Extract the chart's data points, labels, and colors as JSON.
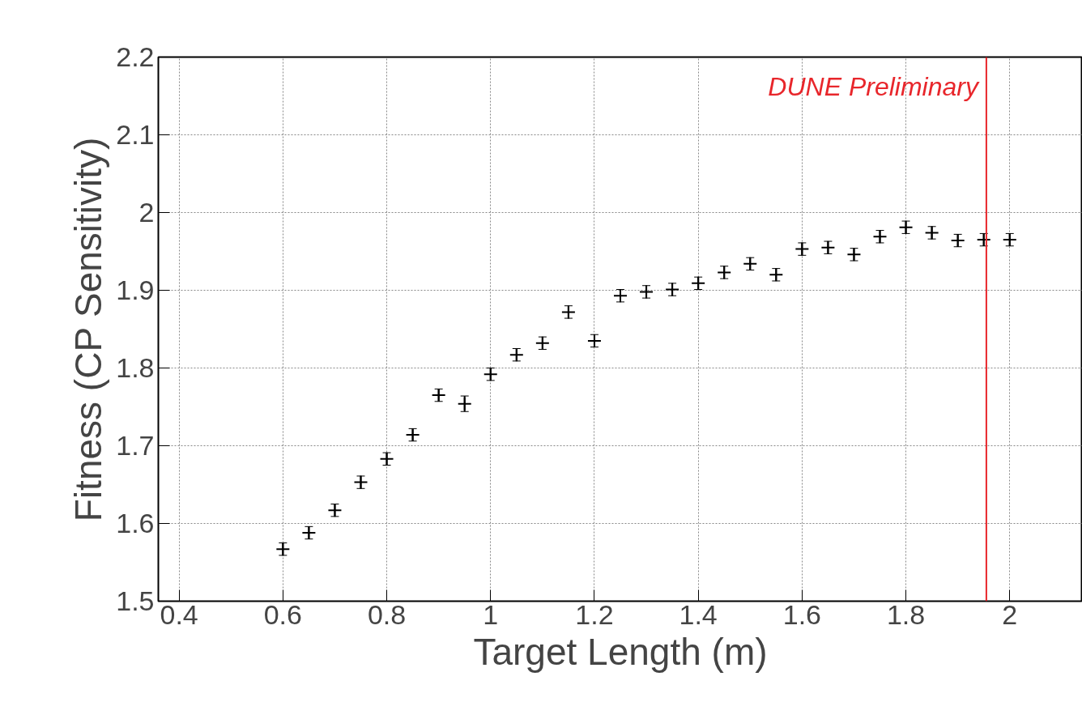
{
  "chart_data": {
    "type": "scatter",
    "xlabel": "Target Length (m)",
    "ylabel": "Fitness (CP Sensitivity)",
    "x": [
      0.6,
      0.65,
      0.7,
      0.75,
      0.8,
      0.85,
      0.9,
      0.95,
      1.0,
      1.05,
      1.1,
      1.15,
      1.2,
      1.25,
      1.3,
      1.35,
      1.4,
      1.45,
      1.5,
      1.55,
      1.6,
      1.65,
      1.7,
      1.75,
      1.8,
      1.85,
      1.9,
      1.95,
      2.0
    ],
    "series": [
      {
        "color": "#000000",
        "values": [
          1.567,
          1.588,
          1.617,
          1.653,
          1.683,
          1.714,
          1.765,
          1.754,
          1.792,
          1.817,
          1.832,
          1.872,
          1.835,
          1.893,
          1.898,
          1.901,
          1.909,
          1.923,
          1.934,
          1.92,
          1.953,
          1.955,
          1.946,
          1.969,
          1.981,
          1.974,
          1.964,
          1.965,
          1.965
        ],
        "errors": [
          0.008,
          0.008,
          0.008,
          0.008,
          0.008,
          0.008,
          0.008,
          0.01,
          0.008,
          0.008,
          0.008,
          0.008,
          0.008,
          0.008,
          0.008,
          0.008,
          0.008,
          0.008,
          0.008,
          0.008,
          0.008,
          0.008,
          0.008,
          0.008,
          0.008,
          0.008,
          0.008,
          0.008,
          0.008
        ]
      }
    ],
    "xlim": [
      0.36,
      2.14
    ],
    "ylim": [
      1.5,
      2.2
    ],
    "xticks": [
      0.4,
      0.6,
      0.8,
      1,
      1.2,
      1.4,
      1.6,
      1.8,
      2
    ],
    "yticks": [
      1.5,
      1.6,
      1.7,
      1.8,
      1.9,
      2,
      2.1,
      2.2
    ],
    "grid": true,
    "marker": "cross",
    "ref_lines": [
      {
        "axis": "x",
        "value": 1.955,
        "color": "#e8262b"
      }
    ],
    "annotations": [
      "DUNE Preliminary"
    ]
  }
}
